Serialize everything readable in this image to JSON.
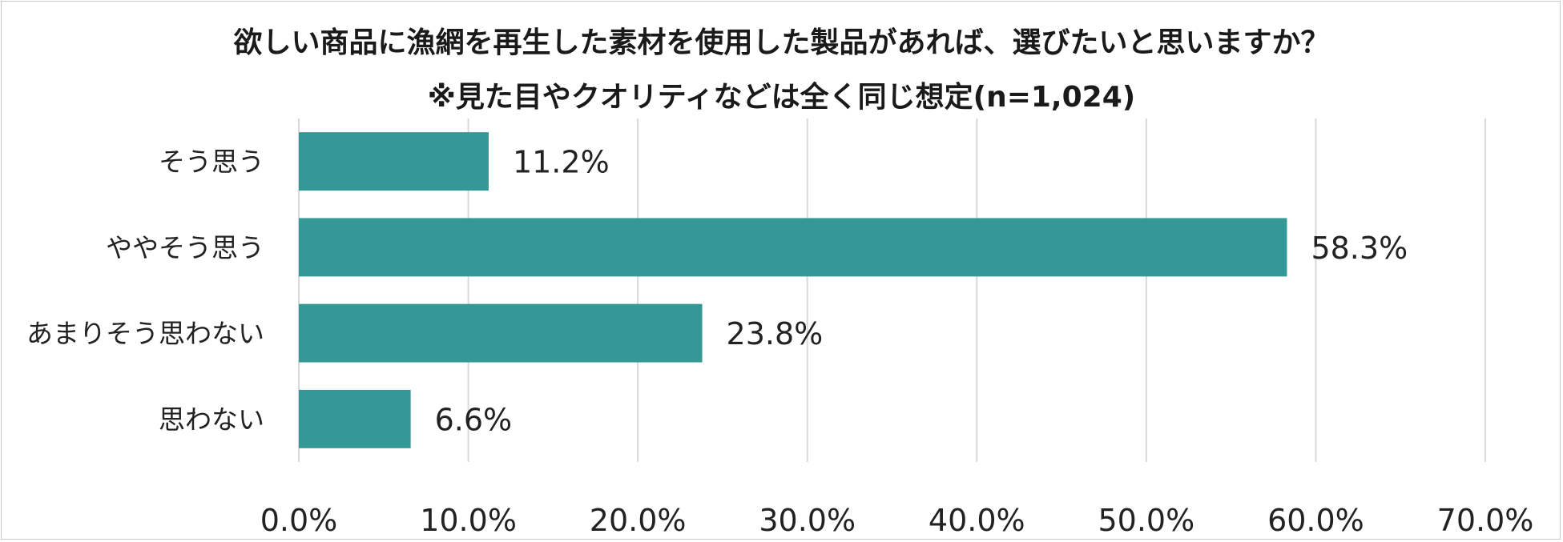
{
  "chart_data": {
    "type": "bar",
    "orientation": "horizontal",
    "title": "欲しい商品に漁網を再生した素材を使用した製品があれば、選びたいと思いますか？",
    "subtitle": "※見た目やクオリティなどは全く同じ想定(n=1,024)",
    "categories": [
      "そう思う",
      "ややそう思う",
      "あまりそう思わない",
      "思わない"
    ],
    "values": [
      11.2,
      58.3,
      23.8,
      6.6
    ],
    "data_labels": [
      "11.2%",
      "58.3%",
      "23.8%",
      "6.6%"
    ],
    "xlim": [
      0,
      70
    ],
    "ticks": [
      0,
      10,
      20,
      30,
      40,
      50,
      60,
      70
    ],
    "tick_labels": [
      "0.0%",
      "10.0%",
      "20.0%",
      "30.0%",
      "40.0%",
      "50.0%",
      "60.0%",
      "70.0%"
    ],
    "grid": "vertical",
    "legend": "none",
    "bar_color": "#339896",
    "grid_color": "#d9d9d9"
  }
}
